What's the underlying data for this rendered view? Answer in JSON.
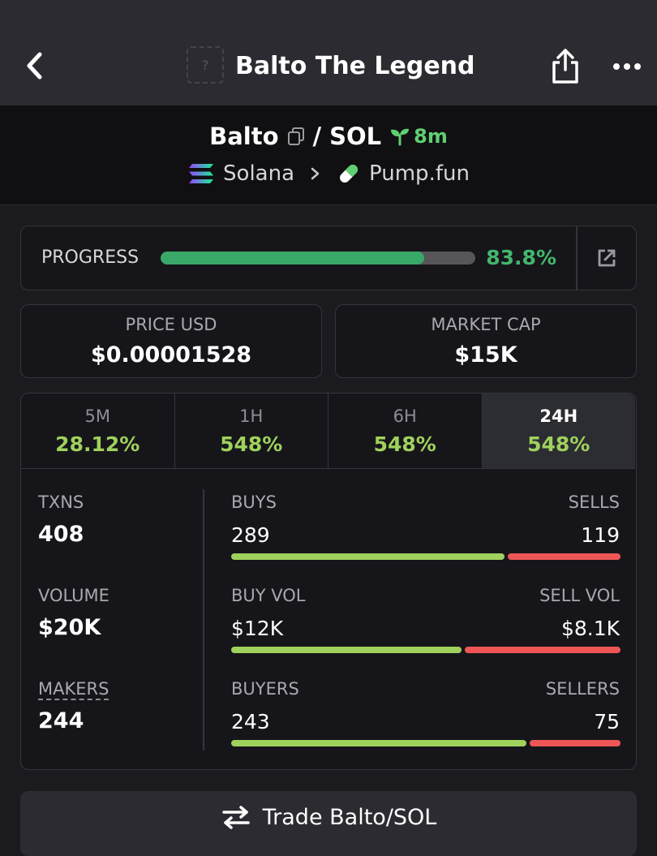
{
  "header": {
    "title": "Balto The Legend",
    "logo_placeholder": "?"
  },
  "pair": {
    "base": "Balto",
    "separator": "/",
    "quote": "SOL",
    "age": "8m",
    "chain": "Solana",
    "dex": "Pump.fun"
  },
  "progress": {
    "label": "PROGRESS",
    "percent_text": "83.8%",
    "fraction": 0.838
  },
  "stats": {
    "price_label": "PRICE USD",
    "price_value": "$0.00001528",
    "mcap_label": "MARKET CAP",
    "mcap_value": "$15K"
  },
  "tabs": [
    {
      "label": "5M",
      "value": "28.12%"
    },
    {
      "label": "1H",
      "value": "548%"
    },
    {
      "label": "6H",
      "value": "548%"
    },
    {
      "label": "24H",
      "value": "548%"
    }
  ],
  "metrics": {
    "txns_label": "TXNS",
    "txns_value": "408",
    "volume_label": "VOLUME",
    "volume_value": "$20K",
    "makers_label": "MAKERS",
    "makers_value": "244"
  },
  "breakdown": {
    "buys_label": "BUYS",
    "sells_label": "SELLS",
    "buys_value": "289",
    "sells_value": "119",
    "buy_vol_label": "BUY VOL",
    "sell_vol_label": "SELL VOL",
    "buy_vol_value": "$12K",
    "sell_vol_value": "$8.1K",
    "buyers_label": "BUYERS",
    "sellers_label": "SELLERS",
    "buyers_value": "243",
    "sellers_value": "75",
    "buys_ratio": 0.708,
    "buy_vol_ratio": 0.597,
    "buyers_ratio": 0.764
  },
  "trade": {
    "label": "Trade Balto/SOL"
  },
  "colors": {
    "accent_green": "#3aa868",
    "positive": "#9fd15c",
    "negative": "#ee5656"
  }
}
